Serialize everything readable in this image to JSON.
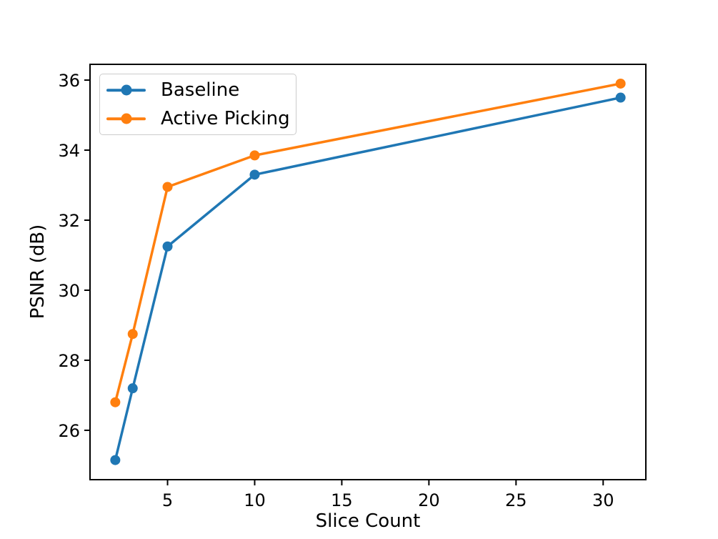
{
  "chart_data": {
    "type": "line",
    "title": "",
    "xlabel": "Slice Count",
    "ylabel": "PSNR (dB)",
    "x": [
      2,
      3,
      5,
      10,
      31
    ],
    "series": [
      {
        "name": "Baseline",
        "color": "#1f77b4",
        "values": [
          25.15,
          27.2,
          31.25,
          33.3,
          35.5
        ]
      },
      {
        "name": "Active Picking",
        "color": "#ff7f0e",
        "values": [
          26.8,
          28.75,
          32.95,
          33.85,
          35.9
        ]
      }
    ],
    "xlim": [
      0.55,
      32.45
    ],
    "ylim": [
      24.59,
      36.45
    ],
    "xticks": [
      5,
      10,
      15,
      20,
      25,
      30
    ],
    "yticks": [
      26,
      28,
      30,
      32,
      34,
      36
    ],
    "grid": false,
    "marker": "circle",
    "legend_position": "upper-left",
    "axis_color": "#000000",
    "legend_border_color": "#cccccc"
  }
}
